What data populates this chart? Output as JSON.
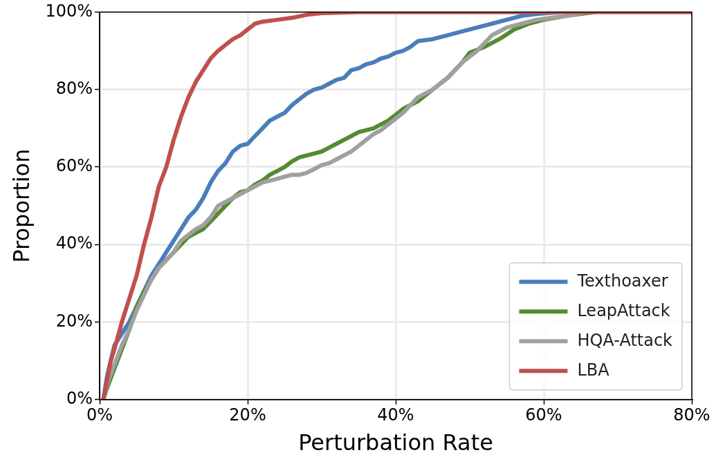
{
  "chart_data": {
    "type": "line",
    "xlabel": "Perturbation Rate",
    "ylabel": "Proportion",
    "xlim": [
      0,
      80
    ],
    "ylim": [
      0,
      100
    ],
    "xticks": [
      {
        "value": 0,
        "label": "0%"
      },
      {
        "value": 20,
        "label": "20%"
      },
      {
        "value": 40,
        "label": "40%"
      },
      {
        "value": 60,
        "label": "60%"
      },
      {
        "value": 80,
        "label": "80%"
      }
    ],
    "yticks": [
      {
        "value": 0,
        "label": "0%"
      },
      {
        "value": 20,
        "label": "20%"
      },
      {
        "value": 40,
        "label": "40%"
      },
      {
        "value": 60,
        "label": "60%"
      },
      {
        "value": 80,
        "label": "80%"
      },
      {
        "value": 100,
        "label": "100%"
      }
    ],
    "grid": true,
    "legend": "bottom right",
    "marker": "none",
    "line_style": "solid",
    "series": [
      {
        "name": "Texthoaxer",
        "color": "#4a7ebb",
        "x": [
          0.5,
          1,
          2,
          3,
          4,
          5,
          6,
          7,
          8,
          9,
          10,
          11,
          12,
          13,
          14,
          15,
          16,
          17,
          18,
          19,
          20,
          21,
          22,
          23,
          24,
          25,
          26,
          27,
          28,
          29,
          30,
          31,
          32,
          33,
          34,
          35,
          36,
          37,
          38,
          39,
          40,
          41,
          42,
          43,
          45,
          47,
          49,
          51,
          53,
          55,
          57,
          59,
          62
        ],
        "values": [
          0,
          6,
          14,
          17,
          20,
          24,
          28,
          32,
          35,
          38,
          41,
          44,
          47,
          49,
          52,
          56,
          59,
          61,
          64,
          65.5,
          66,
          68,
          70,
          72,
          73,
          74,
          76,
          77.5,
          79,
          80,
          80.5,
          81.5,
          82.5,
          83,
          85,
          85.5,
          86.5,
          87,
          88,
          88.5,
          89.5,
          90,
          91,
          92.5,
          93,
          94,
          95,
          96,
          97,
          98,
          99,
          99.5,
          100
        ]
      },
      {
        "name": "LeapAttack",
        "color": "#558b2f",
        "x": [
          0.5,
          1,
          2,
          3,
          4,
          5,
          6,
          7,
          8,
          9,
          10,
          11,
          12,
          13,
          14,
          15,
          16,
          17,
          18,
          19,
          20,
          21,
          22,
          23,
          24,
          25,
          26,
          27,
          28,
          29,
          30,
          31,
          32,
          33,
          34,
          35,
          37,
          39,
          41,
          43,
          45,
          47,
          49,
          50,
          52,
          54,
          56,
          58,
          60,
          63,
          67
        ],
        "values": [
          0,
          3,
          8,
          13,
          18,
          24,
          28,
          31,
          34,
          36,
          38,
          40,
          42,
          43,
          44,
          46,
          48,
          50,
          52,
          53.5,
          54,
          55.5,
          56.5,
          58,
          59,
          60,
          61.5,
          62.5,
          63,
          63.5,
          64,
          65,
          66,
          67,
          68,
          69,
          70,
          72,
          75,
          77,
          80,
          83,
          87,
          89.5,
          91,
          93,
          95.5,
          97,
          98,
          99,
          100
        ]
      },
      {
        "name": "HQA-Attack",
        "color": "#a0a0a0",
        "x": [
          0.5,
          1,
          2,
          3,
          4,
          5,
          6,
          7,
          8,
          9,
          10,
          11,
          12,
          13,
          14,
          15,
          16,
          17,
          18,
          19,
          20,
          21,
          22,
          23,
          24,
          25,
          26,
          27,
          28,
          29,
          30,
          31,
          32,
          33,
          34,
          35,
          36,
          37,
          38,
          39,
          40,
          41,
          42,
          43,
          44,
          45,
          46,
          47,
          48,
          49,
          50,
          51,
          52,
          53,
          54,
          55,
          57,
          59,
          61,
          63,
          66
        ],
        "values": [
          0,
          4,
          9,
          14,
          18,
          23,
          27,
          31,
          34,
          36,
          38,
          41,
          42.5,
          44,
          45,
          47,
          50,
          51,
          52,
          53,
          54,
          55,
          56,
          56.5,
          57,
          57.5,
          58,
          58,
          58.5,
          59.5,
          60.5,
          61,
          62,
          63,
          64,
          65.5,
          67,
          68.5,
          69.5,
          71,
          72.5,
          74,
          76,
          78,
          79,
          80,
          81.5,
          83,
          85,
          87,
          88.5,
          90,
          92,
          94,
          95,
          96,
          97,
          98,
          98.5,
          99,
          100
        ]
      },
      {
        "name": "LBA",
        "color": "#c0504d",
        "x": [
          0.5,
          1,
          1.5,
          2,
          3,
          4,
          5,
          6,
          7,
          8,
          9,
          10,
          11,
          12,
          13,
          14,
          15,
          16,
          17,
          18,
          19,
          20,
          21,
          22,
          24,
          26,
          28,
          30,
          35,
          80
        ],
        "values": [
          0,
          5,
          10,
          13,
          20,
          26,
          32,
          40,
          47,
          55,
          60,
          67,
          73,
          78,
          82,
          85,
          88,
          90,
          91.5,
          93,
          94,
          95.5,
          97,
          97.5,
          98,
          98.5,
          99.3,
          99.7,
          100,
          100
        ]
      }
    ]
  }
}
